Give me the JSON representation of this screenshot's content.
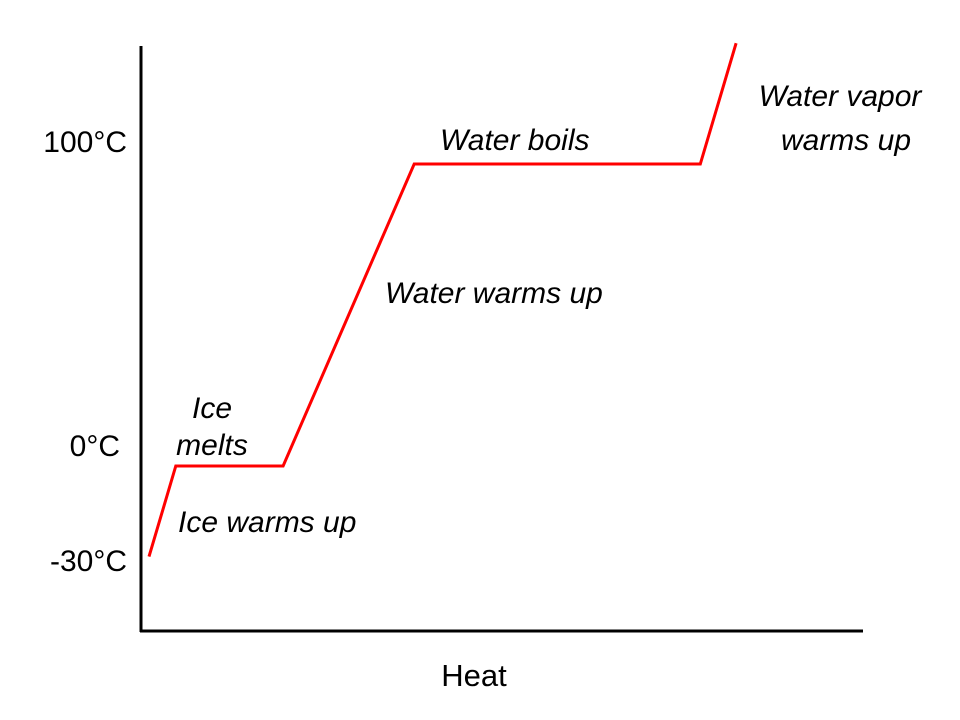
{
  "chart_data": {
    "type": "line",
    "title": "",
    "xlabel": "Heat",
    "ylabel": "",
    "y_ticks": [
      {
        "value": 100,
        "label": "100°C"
      },
      {
        "value": 0,
        "label": "0°C"
      },
      {
        "value": -30,
        "label": "-30°C"
      }
    ],
    "series": [
      {
        "color": "#ff0000",
        "points": [
          {
            "heat": 0.0,
            "temp": -30
          },
          {
            "heat": 0.045,
            "temp": 0
          },
          {
            "heat": 0.225,
            "temp": 0
          },
          {
            "heat": 0.445,
            "temp": 100
          },
          {
            "heat": 0.925,
            "temp": 100
          },
          {
            "heat": 0.985,
            "temp": 140
          }
        ]
      }
    ],
    "annotations": [
      {
        "id": "ice-warms-up",
        "lines": [
          "Ice warms up"
        ]
      },
      {
        "id": "ice-melts",
        "lines": [
          "Ice",
          "melts"
        ]
      },
      {
        "id": "water-warms-up",
        "lines": [
          "Water warms up"
        ]
      },
      {
        "id": "water-boils",
        "lines": [
          "Water boils"
        ]
      },
      {
        "id": "water-vapor-warms-up",
        "lines": [
          "Water vapor",
          "warms up"
        ]
      }
    ],
    "grid": false,
    "legend": "none",
    "axis_color": "#000000"
  }
}
